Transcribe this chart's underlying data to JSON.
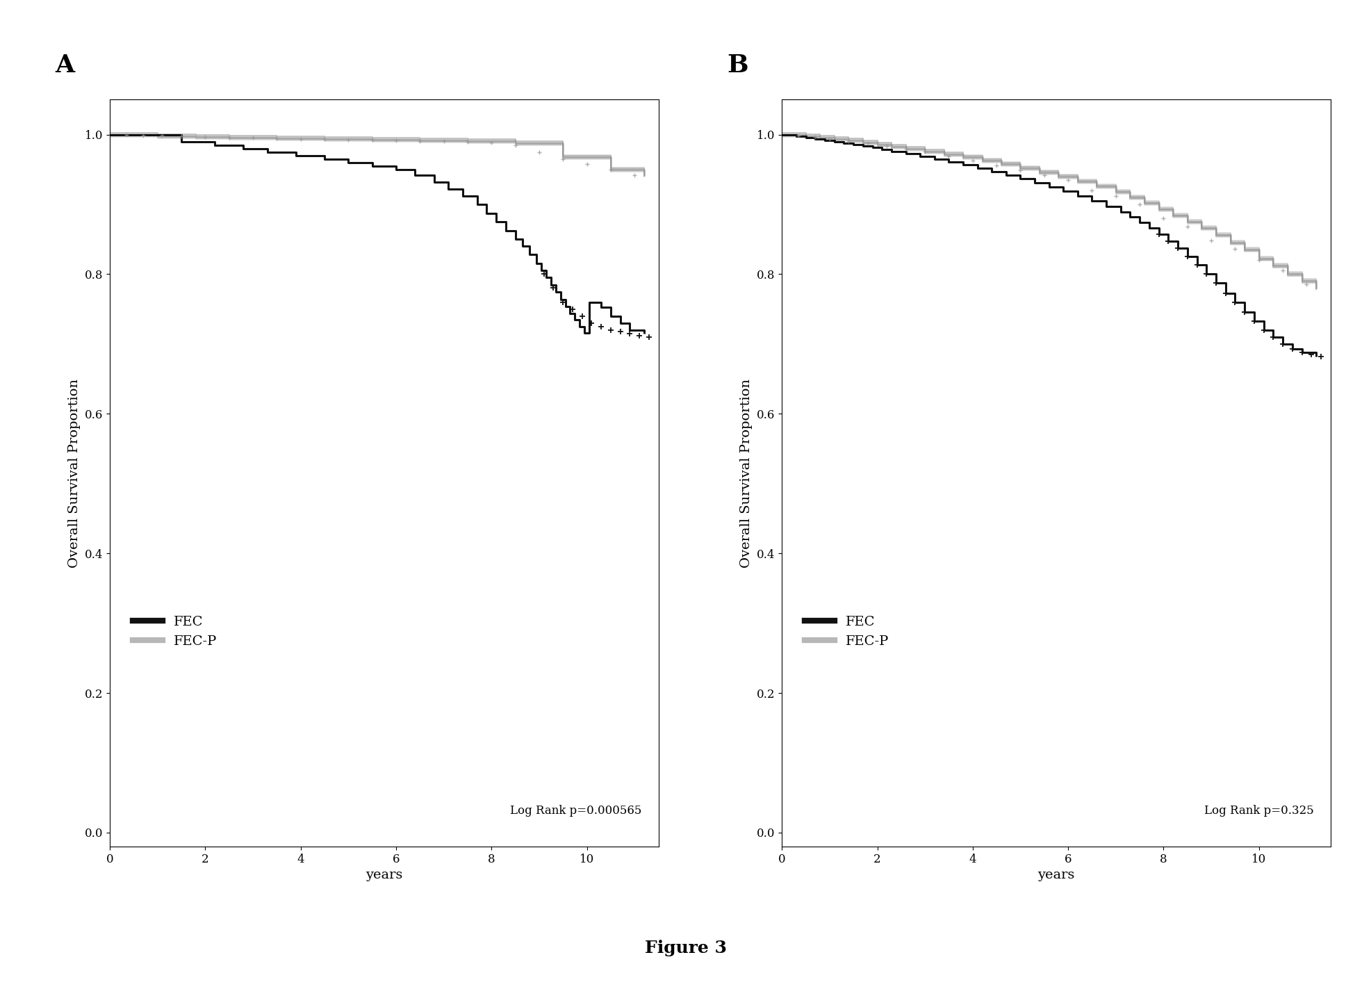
{
  "fig_title": "Figure 3",
  "panel_A": {
    "label": "A",
    "log_rank_p": "Log Rank p=0.000565",
    "xlabel": "years",
    "ylabel": "Overall Survival Proportion",
    "xlim": [
      0,
      11.5
    ],
    "ylim": [
      -0.02,
      1.05
    ],
    "yticks": [
      0.0,
      0.2,
      0.4,
      0.6,
      0.8,
      1.0
    ],
    "xticks": [
      0,
      2,
      4,
      6,
      8,
      10
    ],
    "FEC_color": "#111111",
    "FECP_color": "#999999",
    "FEC_x": [
      0.0,
      0.8,
      1.5,
      2.2,
      2.8,
      3.3,
      3.9,
      4.5,
      5.0,
      5.5,
      6.0,
      6.4,
      6.8,
      7.1,
      7.4,
      7.7,
      7.9,
      8.1,
      8.3,
      8.5,
      8.65,
      8.8,
      8.95,
      9.05,
      9.15,
      9.25,
      9.35,
      9.45,
      9.55,
      9.65,
      9.75,
      9.85,
      9.95,
      10.05,
      10.15,
      10.3,
      10.5,
      10.7,
      10.9,
      11.2
    ],
    "FEC_y": [
      1.0,
      1.0,
      0.99,
      0.985,
      0.98,
      0.975,
      0.97,
      0.965,
      0.96,
      0.955,
      0.95,
      0.942,
      0.932,
      0.922,
      0.912,
      0.9,
      0.887,
      0.875,
      0.862,
      0.85,
      0.84,
      0.828,
      0.815,
      0.805,
      0.795,
      0.784,
      0.775,
      0.764,
      0.754,
      0.744,
      0.735,
      0.725,
      0.716,
      0.76,
      0.76,
      0.753,
      0.74,
      0.73,
      0.72,
      0.715
    ],
    "FECP_x": [
      0.0,
      0.4,
      1.0,
      1.8,
      2.5,
      3.5,
      4.5,
      5.5,
      6.5,
      7.5,
      8.5,
      9.5,
      10.5,
      11.2
    ],
    "FECP_y": [
      1.0,
      1.0,
      0.998,
      0.997,
      0.996,
      0.995,
      0.994,
      0.993,
      0.992,
      0.991,
      0.988,
      0.968,
      0.95,
      0.942
    ],
    "FEC_censor_x": [
      9.1,
      9.3,
      9.5,
      9.7,
      9.9,
      10.1,
      10.3,
      10.5,
      10.7,
      10.9,
      11.1,
      11.3
    ],
    "FEC_censor_y": [
      0.8,
      0.78,
      0.76,
      0.75,
      0.74,
      0.73,
      0.725,
      0.72,
      0.718,
      0.715,
      0.712,
      0.71
    ],
    "FECP_censor_x": [
      0.35,
      0.7,
      1.1,
      1.5,
      2.0,
      2.5,
      3.0,
      3.5,
      4.0,
      4.5,
      5.0,
      5.5,
      6.0,
      6.5,
      7.0,
      7.5,
      8.0,
      8.5,
      9.0,
      9.5,
      10.0,
      10.5,
      11.0
    ],
    "FECP_censor_y": [
      1.0,
      0.999,
      0.999,
      0.998,
      0.997,
      0.996,
      0.996,
      0.995,
      0.994,
      0.994,
      0.993,
      0.993,
      0.992,
      0.991,
      0.991,
      0.99,
      0.989,
      0.985,
      0.975,
      0.965,
      0.958,
      0.95,
      0.942
    ]
  },
  "panel_B": {
    "label": "B",
    "log_rank_p": "Log Rank p=0.325",
    "xlabel": "years",
    "ylabel": "Overall Survival Proportion",
    "xlim": [
      0,
      11.5
    ],
    "ylim": [
      -0.02,
      1.05
    ],
    "yticks": [
      0.0,
      0.2,
      0.4,
      0.6,
      0.8,
      1.0
    ],
    "xticks": [
      0,
      2,
      4,
      6,
      8,
      10
    ],
    "FEC_color": "#111111",
    "FECP_color": "#999999",
    "FEC_x": [
      0.0,
      0.15,
      0.3,
      0.5,
      0.7,
      0.9,
      1.1,
      1.3,
      1.5,
      1.7,
      1.9,
      2.1,
      2.3,
      2.6,
      2.9,
      3.2,
      3.5,
      3.8,
      4.1,
      4.4,
      4.7,
      5.0,
      5.3,
      5.6,
      5.9,
      6.2,
      6.5,
      6.8,
      7.1,
      7.3,
      7.5,
      7.7,
      7.9,
      8.1,
      8.3,
      8.5,
      8.7,
      8.9,
      9.1,
      9.3,
      9.5,
      9.7,
      9.9,
      10.1,
      10.3,
      10.5,
      10.7,
      10.9,
      11.2
    ],
    "FEC_y": [
      1.0,
      1.0,
      0.998,
      0.996,
      0.994,
      0.992,
      0.99,
      0.988,
      0.986,
      0.984,
      0.982,
      0.979,
      0.976,
      0.973,
      0.969,
      0.965,
      0.961,
      0.957,
      0.952,
      0.947,
      0.942,
      0.937,
      0.931,
      0.925,
      0.919,
      0.912,
      0.905,
      0.897,
      0.889,
      0.882,
      0.874,
      0.866,
      0.857,
      0.847,
      0.837,
      0.825,
      0.813,
      0.8,
      0.787,
      0.773,
      0.76,
      0.746,
      0.733,
      0.72,
      0.71,
      0.7,
      0.693,
      0.688,
      0.682
    ],
    "FECP_x": [
      0.0,
      0.2,
      0.5,
      0.8,
      1.1,
      1.4,
      1.7,
      2.0,
      2.3,
      2.6,
      3.0,
      3.4,
      3.8,
      4.2,
      4.6,
      5.0,
      5.4,
      5.8,
      6.2,
      6.6,
      7.0,
      7.3,
      7.6,
      7.9,
      8.2,
      8.5,
      8.8,
      9.1,
      9.4,
      9.7,
      10.0,
      10.3,
      10.6,
      10.9,
      11.2
    ],
    "FECP_y": [
      1.0,
      1.0,
      0.998,
      0.996,
      0.994,
      0.992,
      0.989,
      0.986,
      0.983,
      0.98,
      0.976,
      0.972,
      0.968,
      0.963,
      0.958,
      0.952,
      0.946,
      0.94,
      0.933,
      0.926,
      0.918,
      0.91,
      0.902,
      0.893,
      0.884,
      0.875,
      0.866,
      0.856,
      0.845,
      0.835,
      0.822,
      0.812,
      0.8,
      0.79,
      0.78
    ],
    "FEC_censor_x": [
      7.9,
      8.1,
      8.3,
      8.5,
      8.7,
      8.9,
      9.1,
      9.3,
      9.5,
      9.7,
      9.9,
      10.1,
      10.3,
      10.5,
      10.7,
      10.9,
      11.1,
      11.3
    ],
    "FEC_censor_y": [
      0.857,
      0.847,
      0.837,
      0.825,
      0.813,
      0.8,
      0.787,
      0.773,
      0.76,
      0.746,
      0.733,
      0.72,
      0.71,
      0.7,
      0.693,
      0.688,
      0.685,
      0.682
    ],
    "FECP_censor_x": [
      0.35,
      0.7,
      1.0,
      1.4,
      1.8,
      2.2,
      2.6,
      3.0,
      3.5,
      4.0,
      4.5,
      5.0,
      5.5,
      6.0,
      6.5,
      7.0,
      7.5,
      8.0,
      8.5,
      9.0,
      9.5,
      10.0,
      10.5,
      11.0
    ],
    "FECP_censor_y": [
      0.999,
      0.997,
      0.994,
      0.991,
      0.988,
      0.984,
      0.98,
      0.976,
      0.969,
      0.963,
      0.956,
      0.949,
      0.942,
      0.935,
      0.92,
      0.912,
      0.9,
      0.88,
      0.868,
      0.848,
      0.836,
      0.82,
      0.805,
      0.785
    ]
  },
  "legend_FEC_label": "FEC",
  "legend_FECP_label": "FEC-P",
  "bg_color": "#ffffff",
  "panel_label_fontsize": 26,
  "axis_label_fontsize": 14,
  "tick_fontsize": 12,
  "legend_fontsize": 14,
  "pvalue_fontsize": 12,
  "fig_title_fontsize": 18
}
